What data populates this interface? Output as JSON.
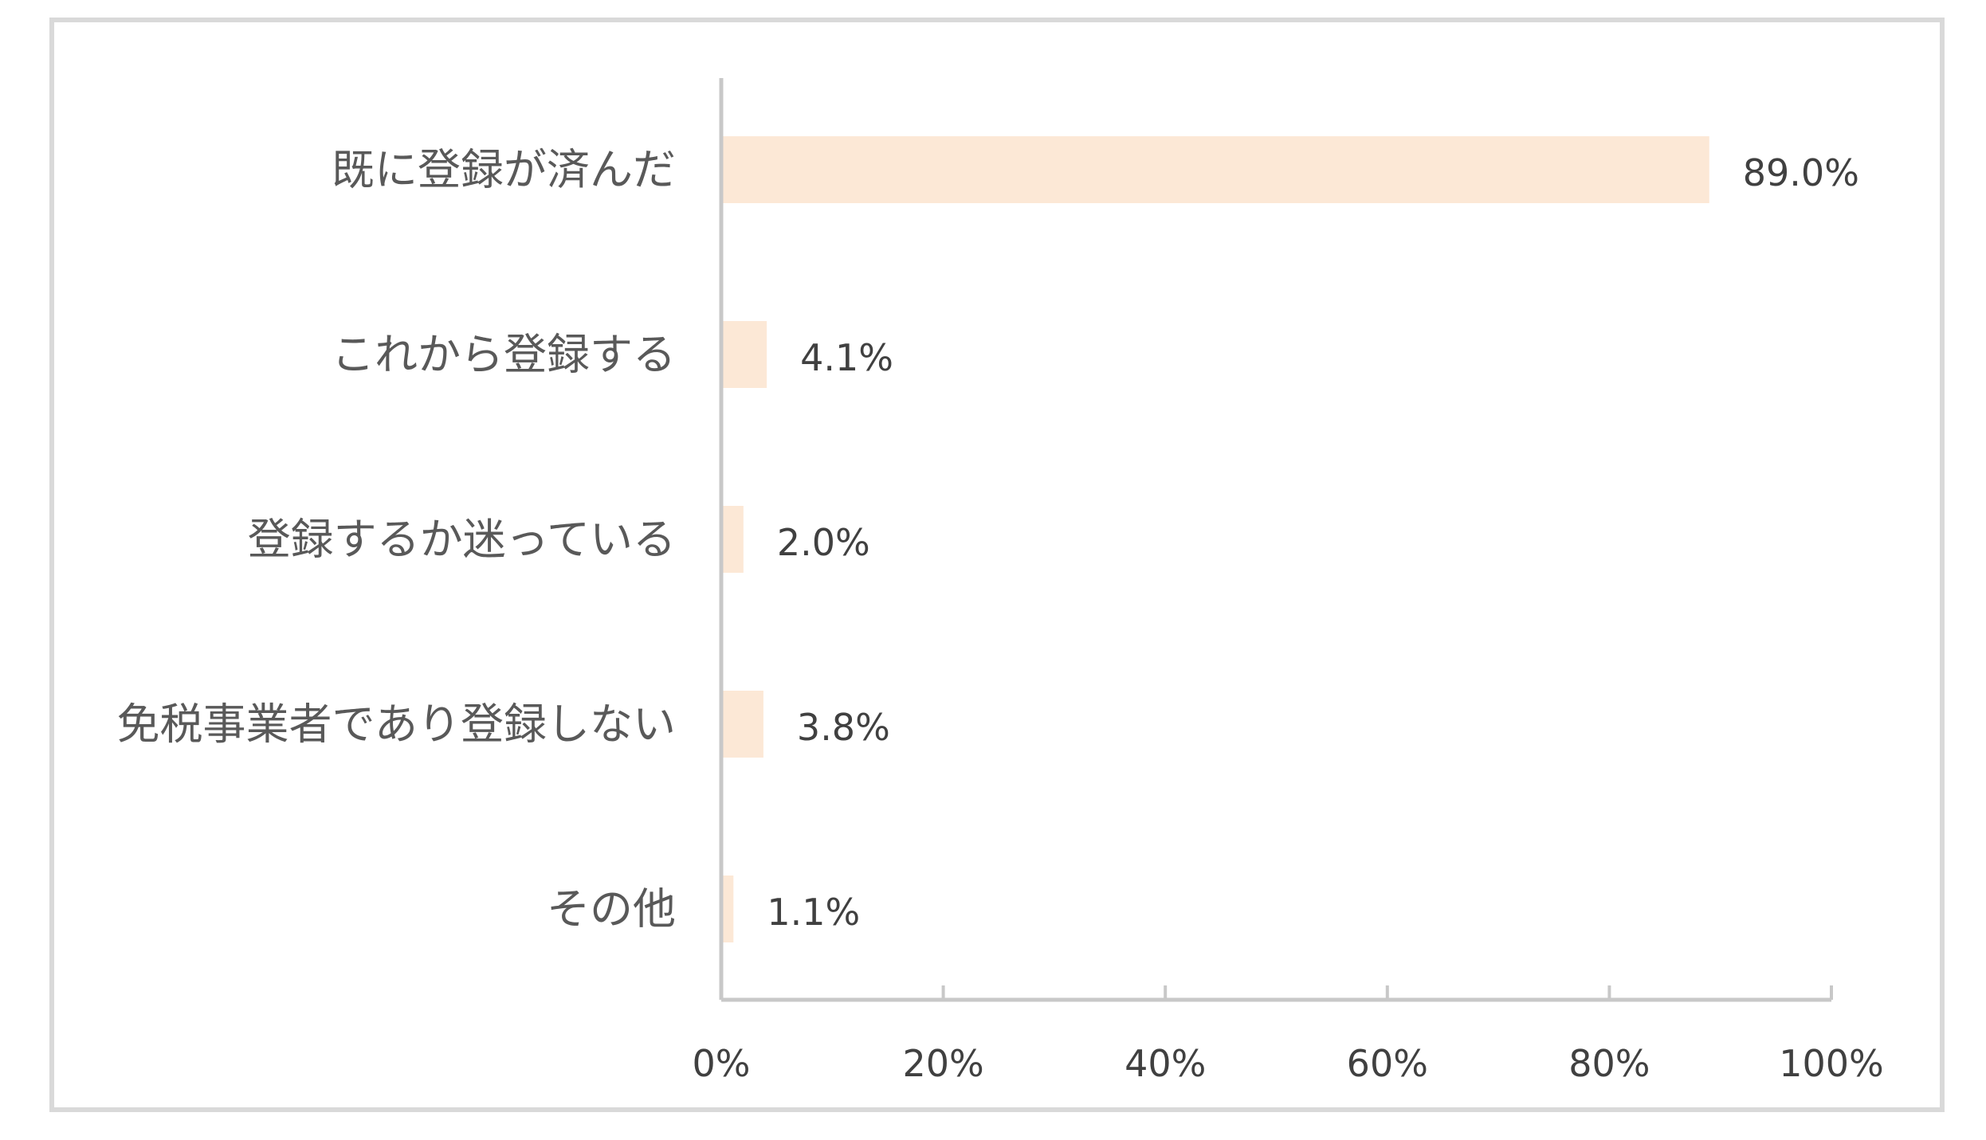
{
  "chart_data": {
    "type": "bar",
    "orientation": "horizontal",
    "categories": [
      "既に登録が済んだ",
      "これから登録する",
      "登録するか迷っている",
      "免税事業者であり登録しない",
      "その他"
    ],
    "values": [
      89.0,
      4.1,
      2.0,
      3.8,
      1.1
    ],
    "value_labels": [
      "89.0%",
      "4.1%",
      "2.0%",
      "3.8%",
      "1.1%"
    ],
    "x_ticks": [
      0,
      20,
      40,
      60,
      80,
      100
    ],
    "x_tick_labels": [
      "0%",
      "20%",
      "40%",
      "60%",
      "80%",
      "100%"
    ],
    "xlim": [
      0,
      100
    ],
    "grid": false,
    "legend": false,
    "title": "",
    "xlabel": "",
    "ylabel": "",
    "colors": {
      "bar": "#fce8d6",
      "axis": "#c8c8c8",
      "frame": "#d9d9d9",
      "category_text": "#595959",
      "value_text": "#404040"
    }
  }
}
